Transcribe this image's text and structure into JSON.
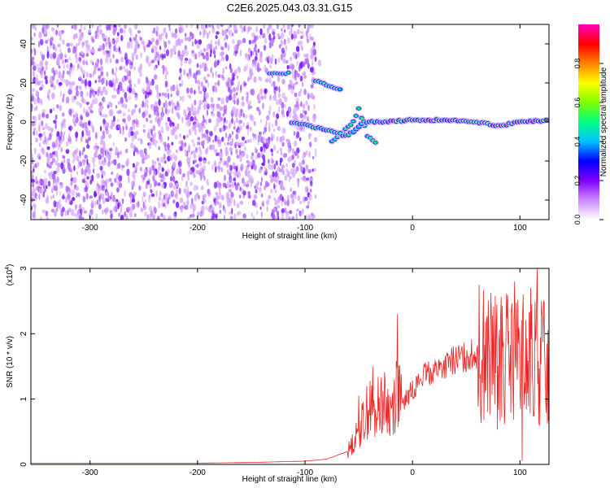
{
  "figure": {
    "title": "C2E6.2025.043.03.31.G15"
  },
  "chart_data": [
    {
      "type": "heatmap",
      "title": "C2E6.2025.043.03.31.G15",
      "xlabel": "Height of straight line (km)",
      "ylabel": "Frequency (Hz)",
      "xlim": [
        -355,
        127
      ],
      "ylim": [
        -50,
        50
      ],
      "x_ticks": [
        -300,
        -200,
        -100,
        0,
        100
      ],
      "y_ticks": [
        -40,
        -20,
        0,
        20,
        40
      ],
      "colorbar": {
        "label": "Normalized spectral amplitude",
        "range": [
          0,
          1
        ],
        "ticks": [
          "0.0",
          "0.2",
          "0.4",
          "0.6",
          "0.8"
        ],
        "colors": [
          "#ffffff",
          "#cc88ff",
          "#8000ff",
          "#0000ff",
          "#00c0ff",
          "#00ff80",
          "#80ff00",
          "#ffff00",
          "#ff8000",
          "#ff0000",
          "#ff00c0"
        ]
      },
      "noise_region_x": [
        -355,
        -88
      ],
      "signal_track": {
        "main_line": [
          [
            -112,
            0
          ],
          [
            -80,
            -4
          ],
          [
            -62,
            -7
          ],
          [
            -55,
            -5
          ],
          [
            -45,
            0
          ],
          [
            -30,
            0
          ],
          [
            0,
            1
          ],
          [
            30,
            1
          ],
          [
            60,
            0
          ],
          [
            80,
            -2
          ],
          [
            100,
            0
          ],
          [
            127,
            1
          ]
        ],
        "upper_branch_1": [
          [
            -133,
            25
          ],
          [
            -113,
            25
          ]
        ],
        "upper_branch_2": [
          [
            -90,
            21
          ],
          [
            -65,
            16
          ]
        ],
        "crossing_branch": [
          [
            -75,
            -10
          ],
          [
            -55,
            0
          ],
          [
            -50,
            7
          ],
          [
            -42,
            -7
          ],
          [
            -32,
            -12
          ]
        ]
      }
    },
    {
      "type": "line",
      "xlabel": "Height of straight line (km)",
      "ylabel": "SNR (10 * v/v)",
      "y_scale_label": "(x10",
      "y_scale_exp": "4",
      "y_scale_close": ")",
      "xlim": [
        -355,
        127
      ],
      "ylim": [
        0,
        3
      ],
      "x_ticks": [
        -300,
        -200,
        -100,
        0,
        100
      ],
      "y_ticks": [
        0,
        1,
        2,
        3
      ],
      "series": [
        {
          "color": "#ee2222",
          "x": [
            -355,
            -300,
            -250,
            -200,
            -150,
            -100,
            -80,
            -60,
            -50,
            -40,
            -35,
            -30,
            -20,
            -14,
            -10,
            0,
            10,
            20,
            30,
            40,
            50,
            60,
            70,
            80,
            90,
            100,
            110,
            120,
            127
          ],
          "y": [
            0.02,
            0.02,
            0.02,
            0.02,
            0.03,
            0.05,
            0.08,
            0.2,
            0.5,
            0.9,
            0.7,
            1.0,
            0.8,
            1.2,
            0.9,
            1.15,
            1.35,
            1.45,
            1.5,
            1.6,
            1.65,
            1.7,
            1.65,
            1.55,
            1.6,
            1.5,
            1.5,
            1.6,
            1.55
          ],
          "spikes": [
            [
              -50,
              1.05
            ],
            [
              -37,
              1.5
            ],
            [
              -14,
              2.3
            ],
            [
              95,
              2.8
            ],
            [
              103,
              2.6
            ],
            [
              110,
              2.7
            ],
            [
              116,
              3.0
            ]
          ]
        }
      ]
    }
  ]
}
